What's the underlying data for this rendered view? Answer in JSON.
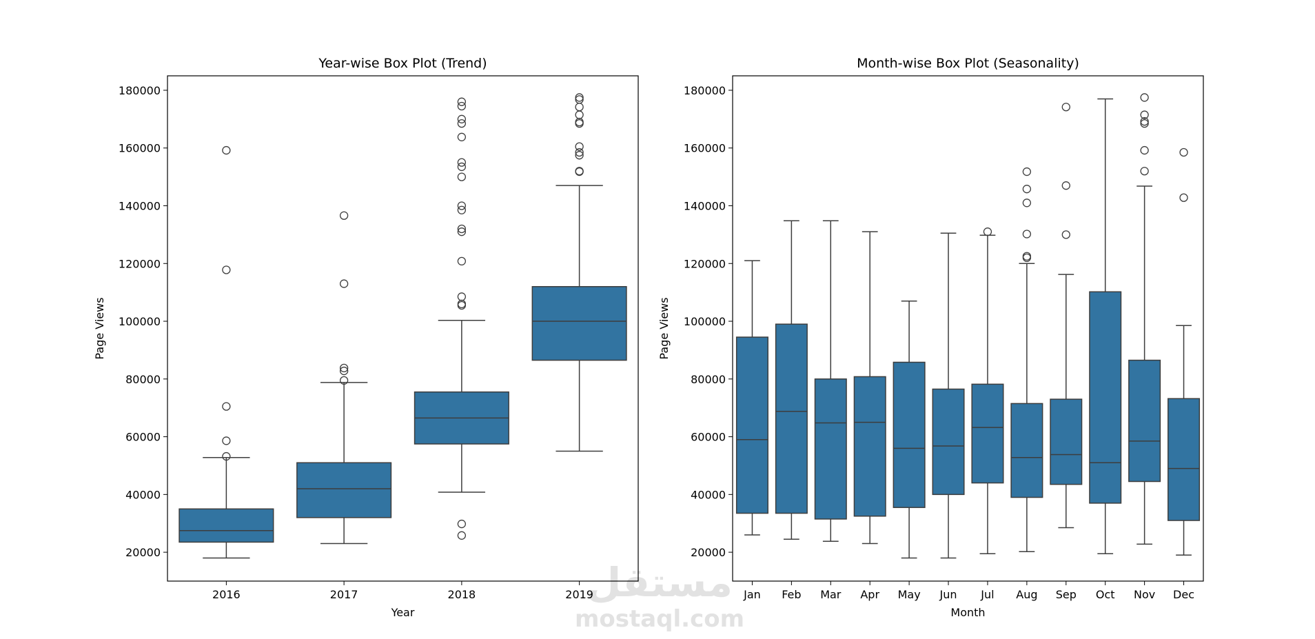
{
  "colors": {
    "box_fill": "#3274a1",
    "box_edge": "#3d3d3d",
    "axes": "#000000",
    "watermark": "#e2e2e2"
  },
  "watermark": {
    "arabic": "مستقل",
    "latin": "mostaql.com"
  },
  "chart_data": [
    {
      "type": "box",
      "title": "Year-wise Box Plot (Trend)",
      "xlabel": "Year",
      "ylabel": "Page Views",
      "ylim": [
        10000,
        185000
      ],
      "yticks": [
        20000,
        40000,
        60000,
        80000,
        100000,
        120000,
        140000,
        160000,
        180000
      ],
      "categories": [
        "2016",
        "2017",
        "2018",
        "2019"
      ],
      "boxes": [
        {
          "whislo": 18000,
          "q1": 23500,
          "med": 27500,
          "q3": 35000,
          "whishi": 52800,
          "fliers": [
            53200,
            58600,
            70500,
            117800,
            159200
          ]
        },
        {
          "whislo": 23000,
          "q1": 32000,
          "med": 42000,
          "q3": 51000,
          "whishi": 78800,
          "fliers": [
            79500,
            82800,
            83800,
            113000,
            136600
          ]
        },
        {
          "whislo": 40800,
          "q1": 57500,
          "med": 66500,
          "q3": 75500,
          "whishi": 100300,
          "fliers": [
            25800,
            29800,
            105500,
            106000,
            108500,
            120800,
            131000,
            132000,
            138500,
            140000,
            150000,
            153500,
            155000,
            163800,
            168500,
            170000,
            174500,
            176000
          ]
        },
        {
          "whislo": 55000,
          "q1": 86500,
          "med": 100000,
          "q3": 112000,
          "whishi": 147000,
          "fliers": [
            151800,
            152000,
            157500,
            158500,
            160500,
            168500,
            169000,
            171500,
            174200,
            176800,
            177500
          ]
        }
      ]
    },
    {
      "type": "box",
      "title": "Month-wise Box Plot (Seasonality)",
      "xlabel": "Month",
      "ylabel": "Page Views",
      "ylim": [
        10000,
        185000
      ],
      "yticks": [
        20000,
        40000,
        60000,
        80000,
        100000,
        120000,
        140000,
        160000,
        180000
      ],
      "categories": [
        "Jan",
        "Feb",
        "Mar",
        "Apr",
        "May",
        "Jun",
        "Jul",
        "Aug",
        "Sep",
        "Oct",
        "Nov",
        "Dec"
      ],
      "boxes": [
        {
          "whislo": 26000,
          "q1": 33500,
          "med": 59000,
          "q3": 94500,
          "whishi": 121000,
          "fliers": []
        },
        {
          "whislo": 24500,
          "q1": 33500,
          "med": 68800,
          "q3": 99000,
          "whishi": 134800,
          "fliers": []
        },
        {
          "whislo": 23800,
          "q1": 31500,
          "med": 64800,
          "q3": 80000,
          "whishi": 134800,
          "fliers": []
        },
        {
          "whislo": 23000,
          "q1": 32500,
          "med": 65000,
          "q3": 80800,
          "whishi": 131000,
          "fliers": []
        },
        {
          "whislo": 18000,
          "q1": 35500,
          "med": 56000,
          "q3": 85800,
          "whishi": 107000,
          "fliers": []
        },
        {
          "whislo": 18000,
          "q1": 40000,
          "med": 56800,
          "q3": 76500,
          "whishi": 130500,
          "fliers": []
        },
        {
          "whislo": 19500,
          "q1": 44000,
          "med": 63200,
          "q3": 78200,
          "whishi": 129800,
          "fliers": [
            131000
          ]
        },
        {
          "whislo": 20200,
          "q1": 39000,
          "med": 52800,
          "q3": 71500,
          "whishi": 120000,
          "fliers": [
            122000,
            122500,
            130200,
            141000,
            145800,
            151800
          ]
        },
        {
          "whislo": 28500,
          "q1": 43500,
          "med": 53800,
          "q3": 73000,
          "whishi": 116200,
          "fliers": [
            130000,
            147000,
            174200
          ]
        },
        {
          "whislo": 19500,
          "q1": 37000,
          "med": 51000,
          "q3": 110200,
          "whishi": 177000,
          "fliers": []
        },
        {
          "whislo": 22800,
          "q1": 44500,
          "med": 58500,
          "q3": 86500,
          "whishi": 146800,
          "fliers": [
            152000,
            159200,
            168500,
            169200,
            171500,
            177500
          ]
        },
        {
          "whislo": 19000,
          "q1": 31000,
          "med": 49000,
          "q3": 73200,
          "whishi": 98500,
          "fliers": [
            142800,
            158500
          ]
        }
      ]
    }
  ]
}
